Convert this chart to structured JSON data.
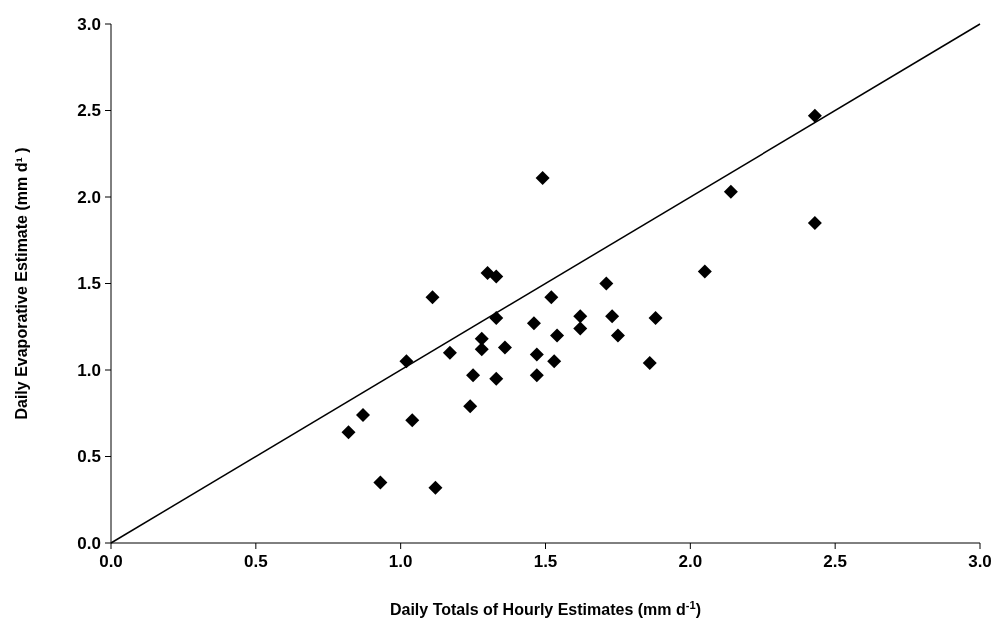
{
  "chart_data": {
    "type": "scatter",
    "xlabel": "Daily Totals of Hourly Estimates (mm d$^{-1}$)",
    "ylabel": "Daily Evaporative Estimate (mm d¹ )",
    "xlim": [
      0,
      3
    ],
    "ylim": [
      0,
      3
    ],
    "xticks": [
      {
        "value": 0,
        "label": "0.0"
      },
      {
        "value": 0.5,
        "label": "0.5"
      },
      {
        "value": 1,
        "label": "1.0"
      },
      {
        "value": 1.5,
        "label": "1.5"
      },
      {
        "value": 2,
        "label": "2.0"
      },
      {
        "value": 2.5,
        "label": "2.5"
      },
      {
        "value": 3,
        "label": "3.0"
      }
    ],
    "yticks": [
      {
        "value": 0,
        "label": "0.0"
      },
      {
        "value": 0.5,
        "label": "0.5"
      },
      {
        "value": 1,
        "label": "1.0"
      },
      {
        "value": 1.5,
        "label": "1.5"
      },
      {
        "value": 2,
        "label": "2.0"
      },
      {
        "value": 2.5,
        "label": "2.5"
      },
      {
        "value": 3,
        "label": "3.0"
      }
    ],
    "grid": false,
    "marker": "diamond",
    "series": [
      {
        "color": "#000000",
        "x": [
          1.3,
          1.33,
          1.11,
          1.52,
          1.71,
          1.33,
          1.46,
          1.62,
          1.62,
          1.73,
          1.88,
          1.28,
          1.28,
          1.36,
          1.54,
          1.75,
          1.17,
          1.47,
          1.53,
          1.02,
          1.86,
          1.25,
          1.33,
          1.47,
          1.24,
          0.87,
          1.04,
          0.82,
          0.93,
          1.12,
          2.14,
          2.43,
          2.05,
          1.49,
          2.43
        ],
        "values": [
          1.56,
          1.54,
          1.42,
          1.42,
          1.5,
          1.3,
          1.27,
          1.31,
          1.24,
          1.31,
          1.3,
          1.18,
          1.12,
          1.13,
          1.2,
          1.2,
          1.1,
          1.09,
          1.05,
          1.05,
          1.04,
          0.97,
          0.95,
          0.97,
          0.79,
          0.74,
          0.71,
          0.64,
          0.35,
          0.32,
          2.03,
          1.85,
          1.57,
          2.11,
          2.47
        ]
      },
      {
        "type": "line",
        "color": "#000000",
        "x": [
          0,
          3
        ],
        "values": [
          0,
          3
        ],
        "marker": "none",
        "line_style": "solid"
      }
    ]
  }
}
